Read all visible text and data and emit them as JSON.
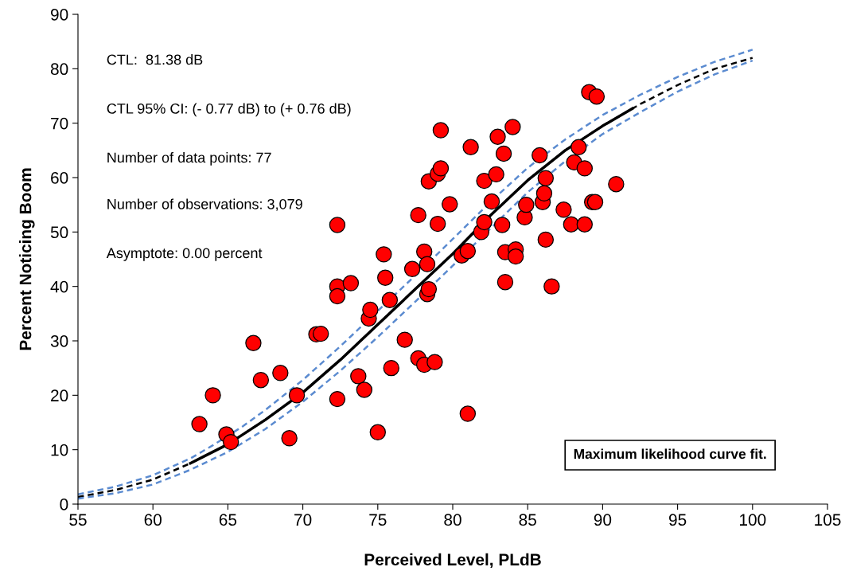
{
  "chart_data": {
    "type": "scatter",
    "xlabel": "Perceived Level, PLdB",
    "ylabel": "Percent Noticing Boom",
    "xlim": [
      55,
      105
    ],
    "ylim": [
      0,
      90
    ],
    "xticks": [
      55,
      60,
      65,
      70,
      75,
      80,
      85,
      90,
      95,
      100,
      105
    ],
    "yticks": [
      0,
      10,
      20,
      30,
      40,
      50,
      60,
      70,
      80,
      90
    ],
    "grid": false,
    "legend": false,
    "annotations": [
      "CTL:  81.38 dB",
      "CTL 95% CI: (- 0.77 dB) to (+ 0.76 dB)",
      "Number of data points: 77",
      "Number of observations: 3,079",
      "Asymptote: 0.00 percent",
      "Maximum likelihood curve fit."
    ],
    "series": [
      {
        "type": "line",
        "color": "#000000",
        "line_style": "dashed",
        "marker": "none",
        "x": [
          55,
          57.5,
          60,
          62.5,
          65,
          67.5,
          70,
          72.5,
          75,
          77.5,
          80,
          82.5,
          85,
          87.5,
          90,
          92.5,
          95,
          97.5,
          100
        ],
        "values": [
          1.3,
          2.6,
          4.5,
          7.5,
          11,
          15.5,
          20.5,
          26.5,
          33,
          39.5,
          46,
          53,
          59.5,
          65,
          69.5,
          73.5,
          77,
          80,
          82
        ]
      },
      {
        "type": "line",
        "color": "#5b8bd0",
        "line_style": "dashed",
        "marker": "none",
        "x": [
          55,
          57.5,
          60,
          62.5,
          64,
          66,
          67.5,
          70,
          72.5,
          75,
          77.5,
          80,
          82.5,
          85,
          87.5,
          90,
          92.5,
          95,
          97.5,
          100
        ],
        "values": [
          1.8,
          3.2,
          5.3,
          8.4,
          10.8,
          14.3,
          17.3,
          22.8,
          29,
          35.5,
          42,
          48.7,
          55.5,
          61.8,
          67,
          71.5,
          75.2,
          78.5,
          81.3,
          83.5
        ]
      },
      {
        "type": "line",
        "color": "#5b8bd0",
        "line_style": "dashed",
        "marker": "none",
        "x": [
          55,
          57.5,
          60,
          62.5,
          65,
          67.5,
          70,
          72.5,
          75,
          77.5,
          80,
          82.5,
          85,
          87.5,
          90,
          92.5,
          95,
          97.5,
          100
        ],
        "values": [
          1.0,
          2.0,
          3.6,
          6.3,
          9.6,
          13.8,
          18.8,
          24.5,
          30.7,
          37.2,
          43.8,
          50.6,
          57.3,
          63,
          68,
          72,
          75.8,
          79,
          81.5
        ]
      },
      {
        "type": "line",
        "color": "#000000",
        "line_style": "solid",
        "marker": "none",
        "x": [
          62.5,
          65,
          67.5,
          70,
          72.5,
          75,
          77.5,
          80,
          82.5,
          85,
          87.5,
          90,
          92
        ],
        "values": [
          7.5,
          11,
          15.5,
          20.5,
          26.5,
          33,
          39.5,
          46,
          53,
          59.5,
          65,
          69.5,
          72.7
        ]
      },
      {
        "color": "#ff0000",
        "marker": "circle",
        "x": [
          63.1,
          64.0,
          64.9,
          65.2,
          66.7,
          67.2,
          68.5,
          69.1,
          69.6,
          70.9,
          71.2,
          72.3,
          72.3,
          72.3,
          72.3,
          73.2,
          73.7,
          74.1,
          74.4,
          74.5,
          75.0,
          75.4,
          75.5,
          75.8,
          75.9,
          76.8,
          77.3,
          77.7,
          77.7,
          78.1,
          78.1,
          78.3,
          78.3,
          78.4,
          78.4,
          78.8,
          79.0,
          79.0,
          79.2,
          79.2,
          79.8,
          80.6,
          81.0,
          81.0,
          81.2,
          81.9,
          82.1,
          82.1,
          82.6,
          82.9,
          83.0,
          83.3,
          83.4,
          83.5,
          83.5,
          84.0,
          84.2,
          84.2,
          84.8,
          84.9,
          85.8,
          86.0,
          86.1,
          86.2,
          86.2,
          86.6,
          87.4,
          87.9,
          88.1,
          88.4,
          88.8,
          88.8,
          89.1,
          89.3,
          89.5,
          89.6,
          90.9
        ],
        "values": [
          14.7,
          20.0,
          12.8,
          11.4,
          29.6,
          22.8,
          24.1,
          12.1,
          20.0,
          31.2,
          31.3,
          51.3,
          40.0,
          38.2,
          19.3,
          40.6,
          23.5,
          21.0,
          34.1,
          35.7,
          13.2,
          45.9,
          41.6,
          37.5,
          25.0,
          30.2,
          43.2,
          53.1,
          26.8,
          25.6,
          46.4,
          44.1,
          38.6,
          39.5,
          59.3,
          26.1,
          51.5,
          60.7,
          61.7,
          68.7,
          55.1,
          45.7,
          46.5,
          16.6,
          65.6,
          50.0,
          59.4,
          51.8,
          55.6,
          60.6,
          67.5,
          51.3,
          64.4,
          46.3,
          40.8,
          69.3,
          46.8,
          45.5,
          52.7,
          55.0,
          64.1,
          55.5,
          57.1,
          48.6,
          59.9,
          40.0,
          54.1,
          51.4,
          62.8,
          65.6,
          61.7,
          51.4,
          75.7,
          55.5,
          55.5,
          74.9,
          58.8
        ]
      }
    ]
  }
}
